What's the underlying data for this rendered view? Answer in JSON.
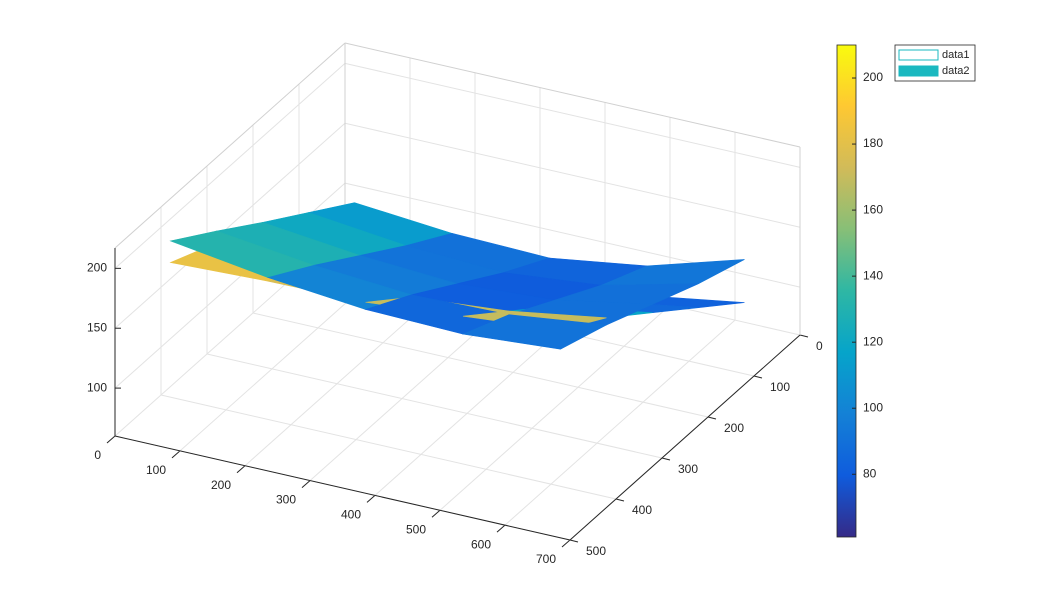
{
  "chart_data": {
    "type": "surface3d",
    "xlim": [
      0,
      700
    ],
    "ylim": [
      0,
      500
    ],
    "zlim": [
      60,
      217
    ],
    "xticks": [
      0,
      100,
      200,
      300,
      400,
      500,
      600,
      700
    ],
    "yticks": [
      0,
      100,
      200,
      300,
      400,
      500
    ],
    "zticks": [
      100,
      150,
      200
    ],
    "grid": true,
    "clim": [
      61,
      210
    ],
    "colorbar_ticks": [
      80,
      100,
      120,
      140,
      160,
      180,
      200
    ],
    "colormap": [
      "#352a87",
      "#0f5cdd",
      "#1481d6",
      "#06a4ca",
      "#2eb7a4",
      "#87bf77",
      "#d1bb59",
      "#fec832",
      "#f9fb0e"
    ],
    "legend_location": "northeast outside",
    "series": [
      {
        "name": "data1",
        "face_color": "#ffffff",
        "edge_color": "#1ab8c0",
        "x": [
          50,
          200,
          350,
          500,
          650
        ],
        "y": [
          50,
          150,
          250,
          350,
          450
        ],
        "z": [
          [
            86,
            79,
            78,
            85,
            98
          ],
          [
            116,
            109,
            108,
            115,
            128
          ],
          [
            146,
            139,
            138,
            145,
            158
          ],
          [
            176,
            169,
            168,
            175,
            188
          ],
          [
            194,
            197,
            198,
            205,
            212
          ]
        ],
        "c": [
          [
            150,
            110,
            80,
            75,
            95
          ],
          [
            140,
            100,
            75,
            70,
            90
          ],
          [
            150,
            115,
            90,
            85,
            100
          ],
          [
            175,
            160,
            140,
            135,
            150
          ],
          [
            195,
            200,
            205,
            200,
            195
          ]
        ]
      },
      {
        "name": "data2",
        "face_color": "#1ab8c0",
        "edge_color": "#1ab8c0",
        "x": [
          50,
          200,
          350,
          500,
          650
        ],
        "y": [
          50,
          150,
          250,
          350,
          450
        ],
        "z": [
          [
            107,
            100,
            98,
            110,
            134
          ],
          [
            133,
            124,
            120,
            128,
            148
          ],
          [
            159,
            150,
            145,
            150,
            165
          ],
          [
            186,
            176,
            170,
            172,
            182
          ],
          [
            212,
            200,
            192,
            190,
            196
          ]
        ],
        "c": [
          [
            120,
            95,
            85,
            90,
            100
          ],
          [
            135,
            100,
            80,
            80,
            100
          ],
          [
            145,
            105,
            80,
            78,
            100
          ],
          [
            150,
            110,
            85,
            80,
            100
          ],
          [
            150,
            115,
            90,
            85,
            100
          ]
        ]
      }
    ]
  }
}
